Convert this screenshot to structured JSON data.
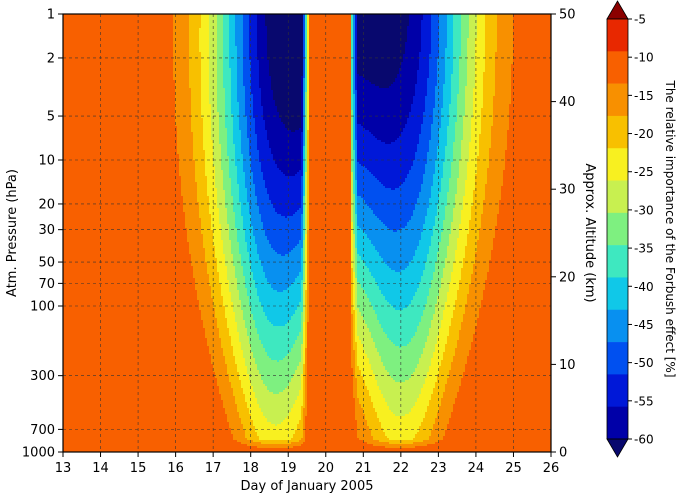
{
  "chart_data": {
    "type": "heatmap",
    "subtype": "filled-contour",
    "title": "",
    "xlabel": "Day of January 2005",
    "ylabel": "Atm. Pressure (hPa)",
    "y2label": "Approx. Altitude (km)",
    "colorbar_label": "The relative importance of the Forbush effect [%]",
    "x_ticks": [
      "13",
      "14",
      "15",
      "16",
      "17",
      "18",
      "19",
      "20",
      "21",
      "22",
      "23",
      "24",
      "25",
      "26"
    ],
    "x_range": [
      13,
      26
    ],
    "y_scale": "log",
    "y_ticks": [
      "1",
      "2",
      "5",
      "10",
      "20",
      "30",
      "50",
      "70",
      "100",
      "300",
      "700",
      "1000"
    ],
    "y_range": [
      1000,
      1
    ],
    "y2_ticks": [
      "0",
      "10",
      "20",
      "30",
      "40",
      "50"
    ],
    "y2_range": [
      0,
      50
    ],
    "grid": true,
    "levels": [
      -60,
      -55,
      -50,
      -45,
      -40,
      -35,
      -30,
      -25,
      -20,
      -15,
      -10,
      -5
    ],
    "colorbar_labels": [
      "-5",
      "-10",
      "-15",
      "-20",
      "-25",
      "-30",
      "-35",
      "-40",
      "-45",
      "-50",
      "-55",
      "-60"
    ],
    "colors": [
      "#08086e",
      "#0000a8",
      "#0018d8",
      "#0050f0",
      "#0890f0",
      "#10c8e8",
      "#3ee8c0",
      "#7ef080",
      "#c8f050",
      "#f8f020",
      "#f8c000",
      "#f89000",
      "#f86000",
      "#e82800",
      "#8b0000"
    ],
    "minima": [
      {
        "day": 18.85,
        "pressure_hPa": 5,
        "value": -60
      },
      {
        "day": 22.0,
        "pressure_hPa": 5,
        "value": -55
      }
    ],
    "zero_gap_days": [
      13,
      16.2,
      19.7,
      20.6,
      26
    ]
  }
}
